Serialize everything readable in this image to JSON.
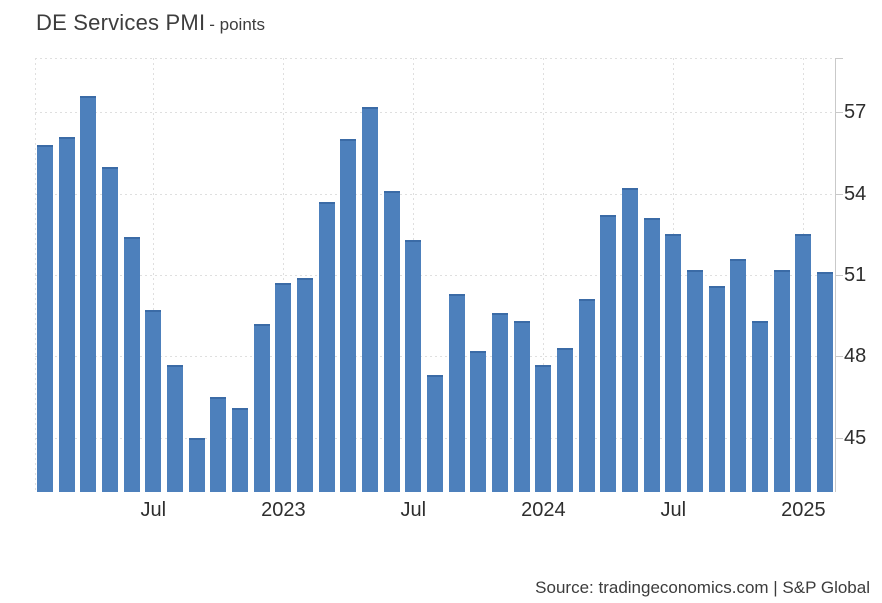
{
  "header": {
    "title": "DE Services PMI",
    "subtitle": "- points"
  },
  "footer": {
    "source": "Source: tradingeconomics.com | S&P Global"
  },
  "chart_data": {
    "type": "bar",
    "title": "DE Services PMI",
    "subtitle": "- points",
    "unit": "points",
    "categories": [
      "Feb 2022",
      "Mar 2022",
      "Apr 2022",
      "May 2022",
      "Jun 2022",
      "Jul 2022",
      "Aug 2022",
      "Sep 2022",
      "Oct 2022",
      "Nov 2022",
      "Dec 2022",
      "Jan 2023",
      "Feb 2023",
      "Mar 2023",
      "Apr 2023",
      "May 2023",
      "Jun 2023",
      "Jul 2023",
      "Aug 2023",
      "Sep 2023",
      "Oct 2023",
      "Nov 2023",
      "Dec 2023",
      "Jan 2024",
      "Feb 2024",
      "Mar 2024",
      "Apr 2024",
      "May 2024",
      "Jun 2024",
      "Jul 2024",
      "Aug 2024",
      "Sep 2024",
      "Oct 2024",
      "Nov 2024",
      "Dec 2024",
      "Jan 2025",
      "Feb 2025"
    ],
    "values": [
      55.8,
      56.1,
      57.6,
      55.0,
      52.4,
      49.7,
      47.7,
      45.0,
      46.5,
      46.1,
      49.2,
      50.7,
      50.9,
      53.7,
      56.0,
      57.2,
      54.1,
      52.3,
      47.3,
      50.3,
      48.2,
      49.6,
      49.3,
      47.7,
      48.3,
      50.1,
      53.2,
      54.2,
      53.1,
      52.5,
      51.2,
      50.6,
      51.6,
      49.3,
      51.2,
      52.5,
      51.1
    ],
    "x_tick_labels": [
      {
        "index": 5,
        "label": "Jul"
      },
      {
        "index": 11,
        "label": "2023"
      },
      {
        "index": 17,
        "label": "Jul"
      },
      {
        "index": 23,
        "label": "2024"
      },
      {
        "index": 29,
        "label": "Jul"
      },
      {
        "index": 35,
        "label": "2025"
      }
    ],
    "y_ticks": [
      45,
      48,
      51,
      54,
      57
    ],
    "ylim": [
      43,
      59
    ],
    "xlabel": "",
    "ylabel": "points",
    "legend_position": "none",
    "grid": "dotted",
    "y_axis_side": "right",
    "bar_color": "#4d80bc",
    "bar_top_color": "#3b6ba6",
    "grid_color": "#dfdfdf",
    "axis_line_color": "#c9c9c9",
    "label_color": "#2e2e2e"
  }
}
